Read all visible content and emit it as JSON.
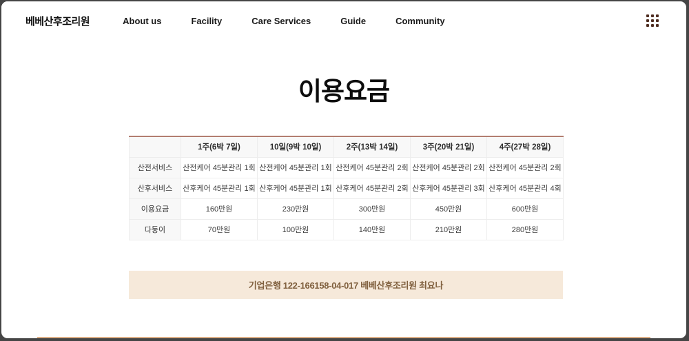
{
  "brand": {
    "name": "베베산후조리원"
  },
  "nav": {
    "items": [
      {
        "label": "About us"
      },
      {
        "label": "Facility"
      },
      {
        "label": "Care Services"
      },
      {
        "label": "Guide"
      },
      {
        "label": "Community"
      }
    ]
  },
  "page": {
    "title": "이용요금"
  },
  "pricing_table": {
    "columns": [
      "",
      "1주(6박 7일)",
      "10일(9박 10일)",
      "2주(13박 14일)",
      "3주(20박 21일)",
      "4주(27박 28일)"
    ],
    "rows": [
      {
        "label": "산전서비스",
        "cells": [
          "산전케어 45분관리 1회",
          "산전케어 45분관리 1회",
          "산전케어 45분관리 2회",
          "산전케어 45분관리 2회",
          "산전케어 45분관리 2회"
        ]
      },
      {
        "label": "산후서비스",
        "cells": [
          "산후케어 45분관리 1회",
          "산후케어 45분관리 1회",
          "산후케어 45분관리 2회",
          "산후케어 45분관리 3회",
          "산후케어 45분관리 4회"
        ]
      },
      {
        "label": "이용요금",
        "cells": [
          "160만원",
          "230만원",
          "300만원",
          "450만원",
          "600만원"
        ]
      },
      {
        "label": "다둥이",
        "cells": [
          "70만원",
          "100만원",
          "140만원",
          "210만원",
          "280만원"
        ]
      }
    ]
  },
  "bank_notice": {
    "text": "기업은행 122-166158-04-017 베베산후조리원 최요나"
  },
  "icons": {
    "apps_grid": "apps-grid-icon"
  },
  "colors": {
    "table_accent_border": "#b27d70",
    "banner_bg": "#f6e9da",
    "banner_text": "#80603e",
    "icon_dot": "#4e2c20"
  }
}
